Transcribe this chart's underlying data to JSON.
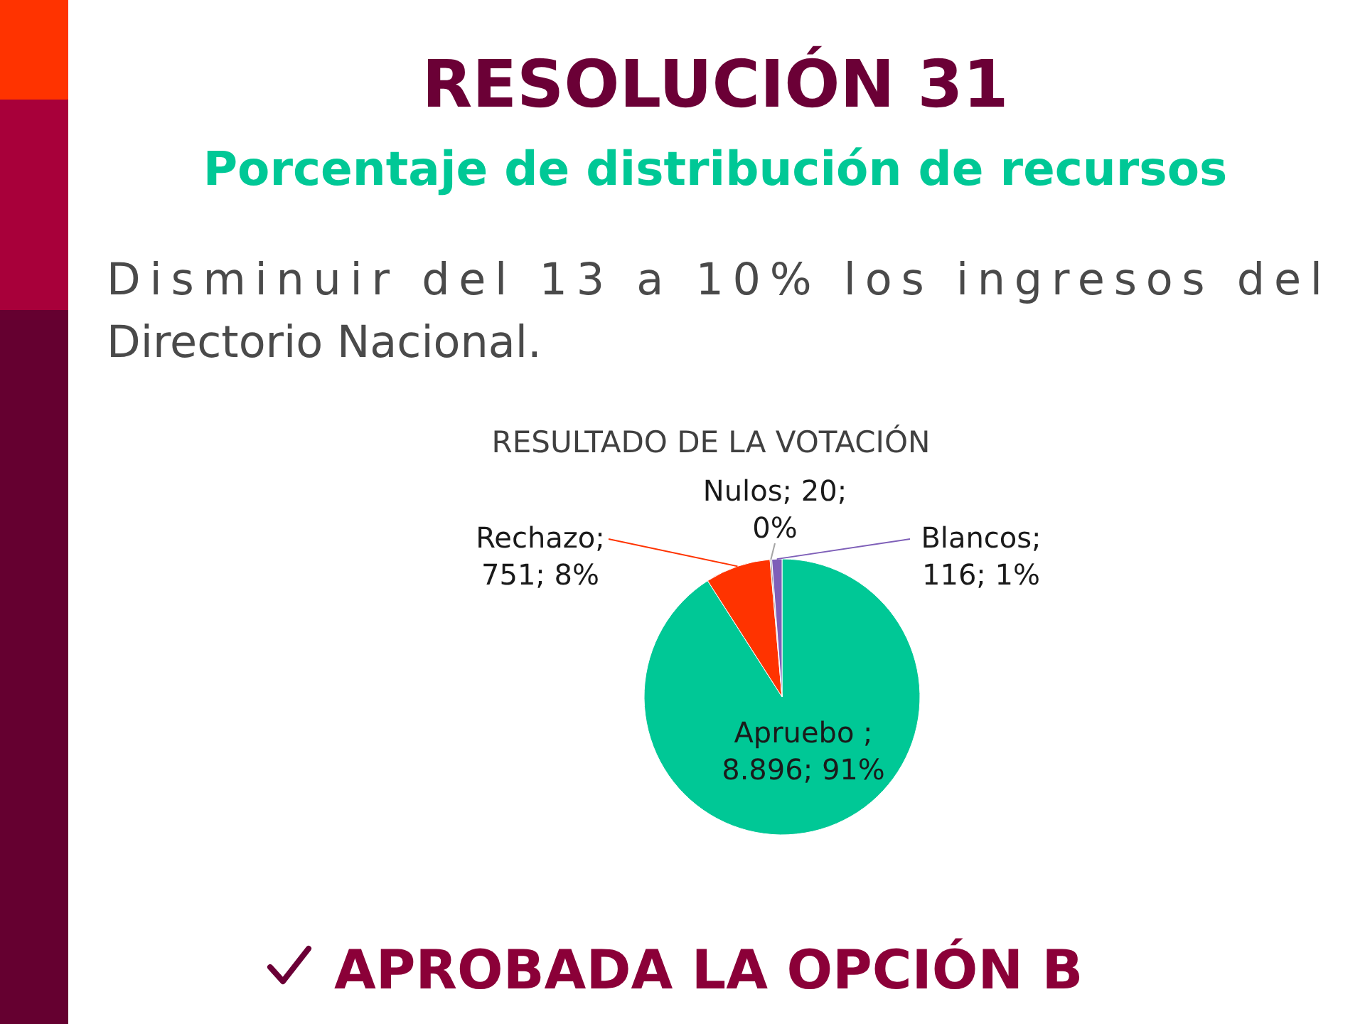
{
  "chart_data": {
    "type": "pie",
    "title": "RESOLUCIÓN 31",
    "subtitle": "Porcentaje de distribución de recursos",
    "annotations": [
      "Disminuir del 13 a 10% los ingresos del Directorio Nacional.",
      "RESULTADO DE LA VOTACIÓN",
      "APROBADA LA OPCIÓN B"
    ],
    "categories": [
      "Apruebo",
      "Rechazo",
      "Nulos",
      "Blancos"
    ],
    "values": [
      8896,
      751,
      20,
      116
    ],
    "colors": [
      "#00c896",
      "#ff3300",
      "#a6a6a6",
      "#7e5fb8"
    ],
    "value_labels": [
      " ; 8.896; 91%",
      "; 751; 8%",
      "; 20; 0%",
      "; 116; 1%"
    ]
  }
}
